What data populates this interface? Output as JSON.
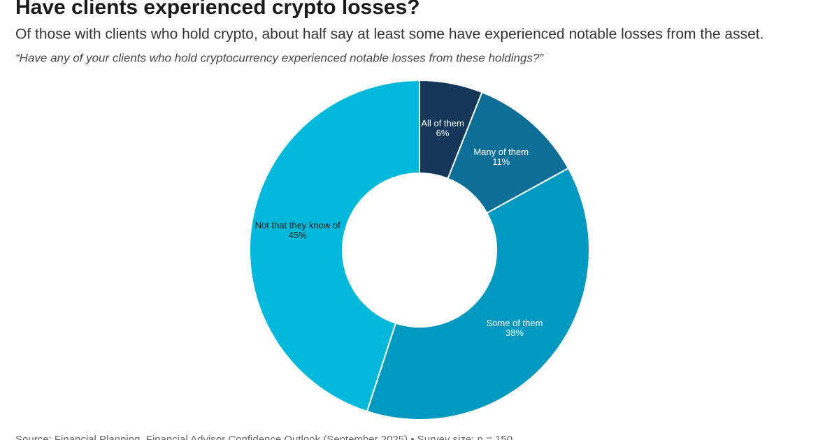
{
  "chart_data": {
    "type": "donut",
    "title": "Have clients experienced crypto losses?",
    "subtitle": "Of those with clients who hold crypto, about half say at least some have experienced notable losses from the asset.",
    "question": "“Have any of your clients who hold cryptocurrency experienced notable losses from these holdings?”",
    "source": "Source: Financial Planning, Financial Advisor Confidence Outlook (September 2025) • Survey size: n = 150",
    "categories": [
      "All of them",
      "Many of them",
      "Some of them",
      "Not that they know of"
    ],
    "values": [
      6,
      11,
      38,
      45
    ],
    "value_labels": [
      "6%",
      "11%",
      "38%",
      "45%"
    ],
    "colors": [
      "#15375a",
      "#0d6f97",
      "#0199c0",
      "#00b8da"
    ]
  }
}
